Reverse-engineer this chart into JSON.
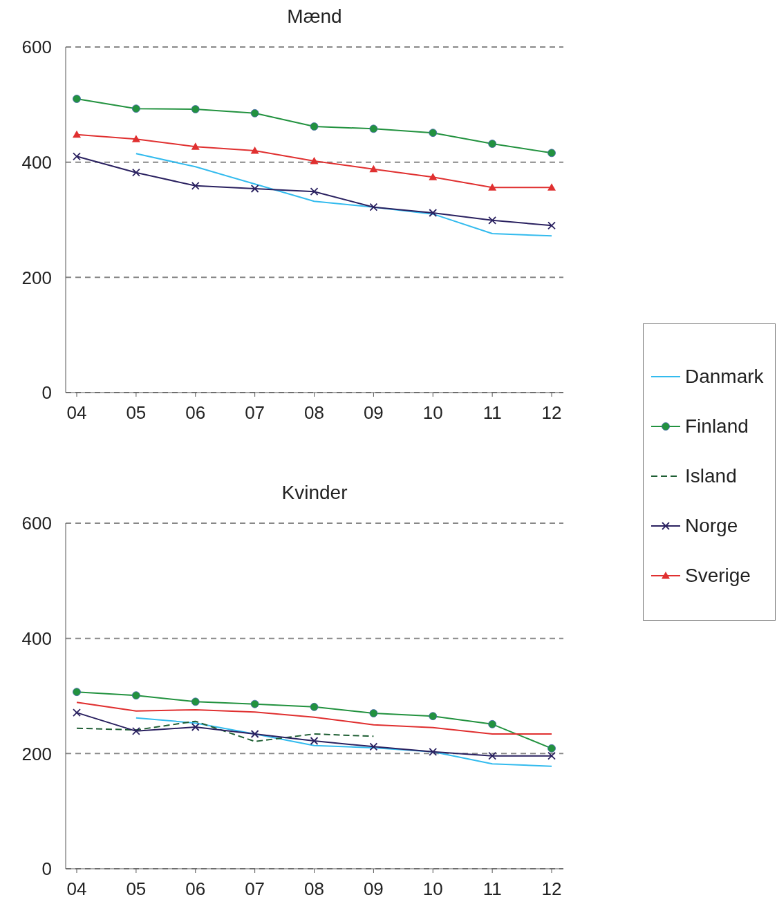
{
  "chart_data": [
    {
      "type": "line",
      "title": "Mænd",
      "categories": [
        "04",
        "05",
        "06",
        "07",
        "08",
        "09",
        "10",
        "11",
        "12"
      ],
      "ylim": [
        0,
        600
      ],
      "yticks": [
        0,
        200,
        400,
        600
      ],
      "grid": "y",
      "legend": "right",
      "series": [
        {
          "name": "Danmark",
          "color": "#33bbee",
          "marker": "none",
          "values": [
            null,
            415,
            392,
            362,
            332,
            322,
            310,
            276,
            272
          ]
        },
        {
          "name": "Finland",
          "color": "#22923f",
          "marker": "circle",
          "values": [
            510,
            493,
            492,
            485,
            462,
            458,
            451,
            432,
            416
          ]
        },
        {
          "name": "Norge",
          "color": "#2a2160",
          "marker": "cross",
          "values": [
            410,
            382,
            359,
            354,
            349,
            322,
            312,
            299,
            290
          ]
        },
        {
          "name": "Sverige",
          "color": "#e03030",
          "marker": "triangle",
          "values": [
            448,
            440,
            427,
            420,
            402,
            388,
            374,
            356,
            356
          ]
        }
      ]
    },
    {
      "type": "line",
      "title": "Kvinder",
      "categories": [
        "04",
        "05",
        "06",
        "07",
        "08",
        "09",
        "10",
        "11",
        "12"
      ],
      "ylim": [
        0,
        600
      ],
      "yticks": [
        0,
        200,
        400,
        600
      ],
      "grid": "y",
      "legend": "right",
      "series": [
        {
          "color": "#33bbee",
          "marker": "none",
          "values": [
            null,
            262,
            253,
            234,
            214,
            210,
            203,
            182,
            178
          ]
        },
        {
          "color": "#22923f",
          "marker": "circle",
          "values": [
            307,
            301,
            290,
            286,
            281,
            270,
            265,
            251,
            209
          ]
        },
        {
          "name": "Island",
          "color": "#1e5e33",
          "marker": "none",
          "line_style": "dashed",
          "values": [
            244,
            241,
            256,
            221,
            234,
            230,
            null,
            null,
            null
          ]
        },
        {
          "color": "#2a2160",
          "marker": "cross",
          "values": [
            271,
            239,
            246,
            234,
            222,
            212,
            203,
            196,
            196
          ]
        },
        {
          "color": "#e03030",
          "marker": "none",
          "values": [
            289,
            274,
            276,
            272,
            263,
            250,
            245,
            234,
            234
          ]
        }
      ]
    }
  ]
}
